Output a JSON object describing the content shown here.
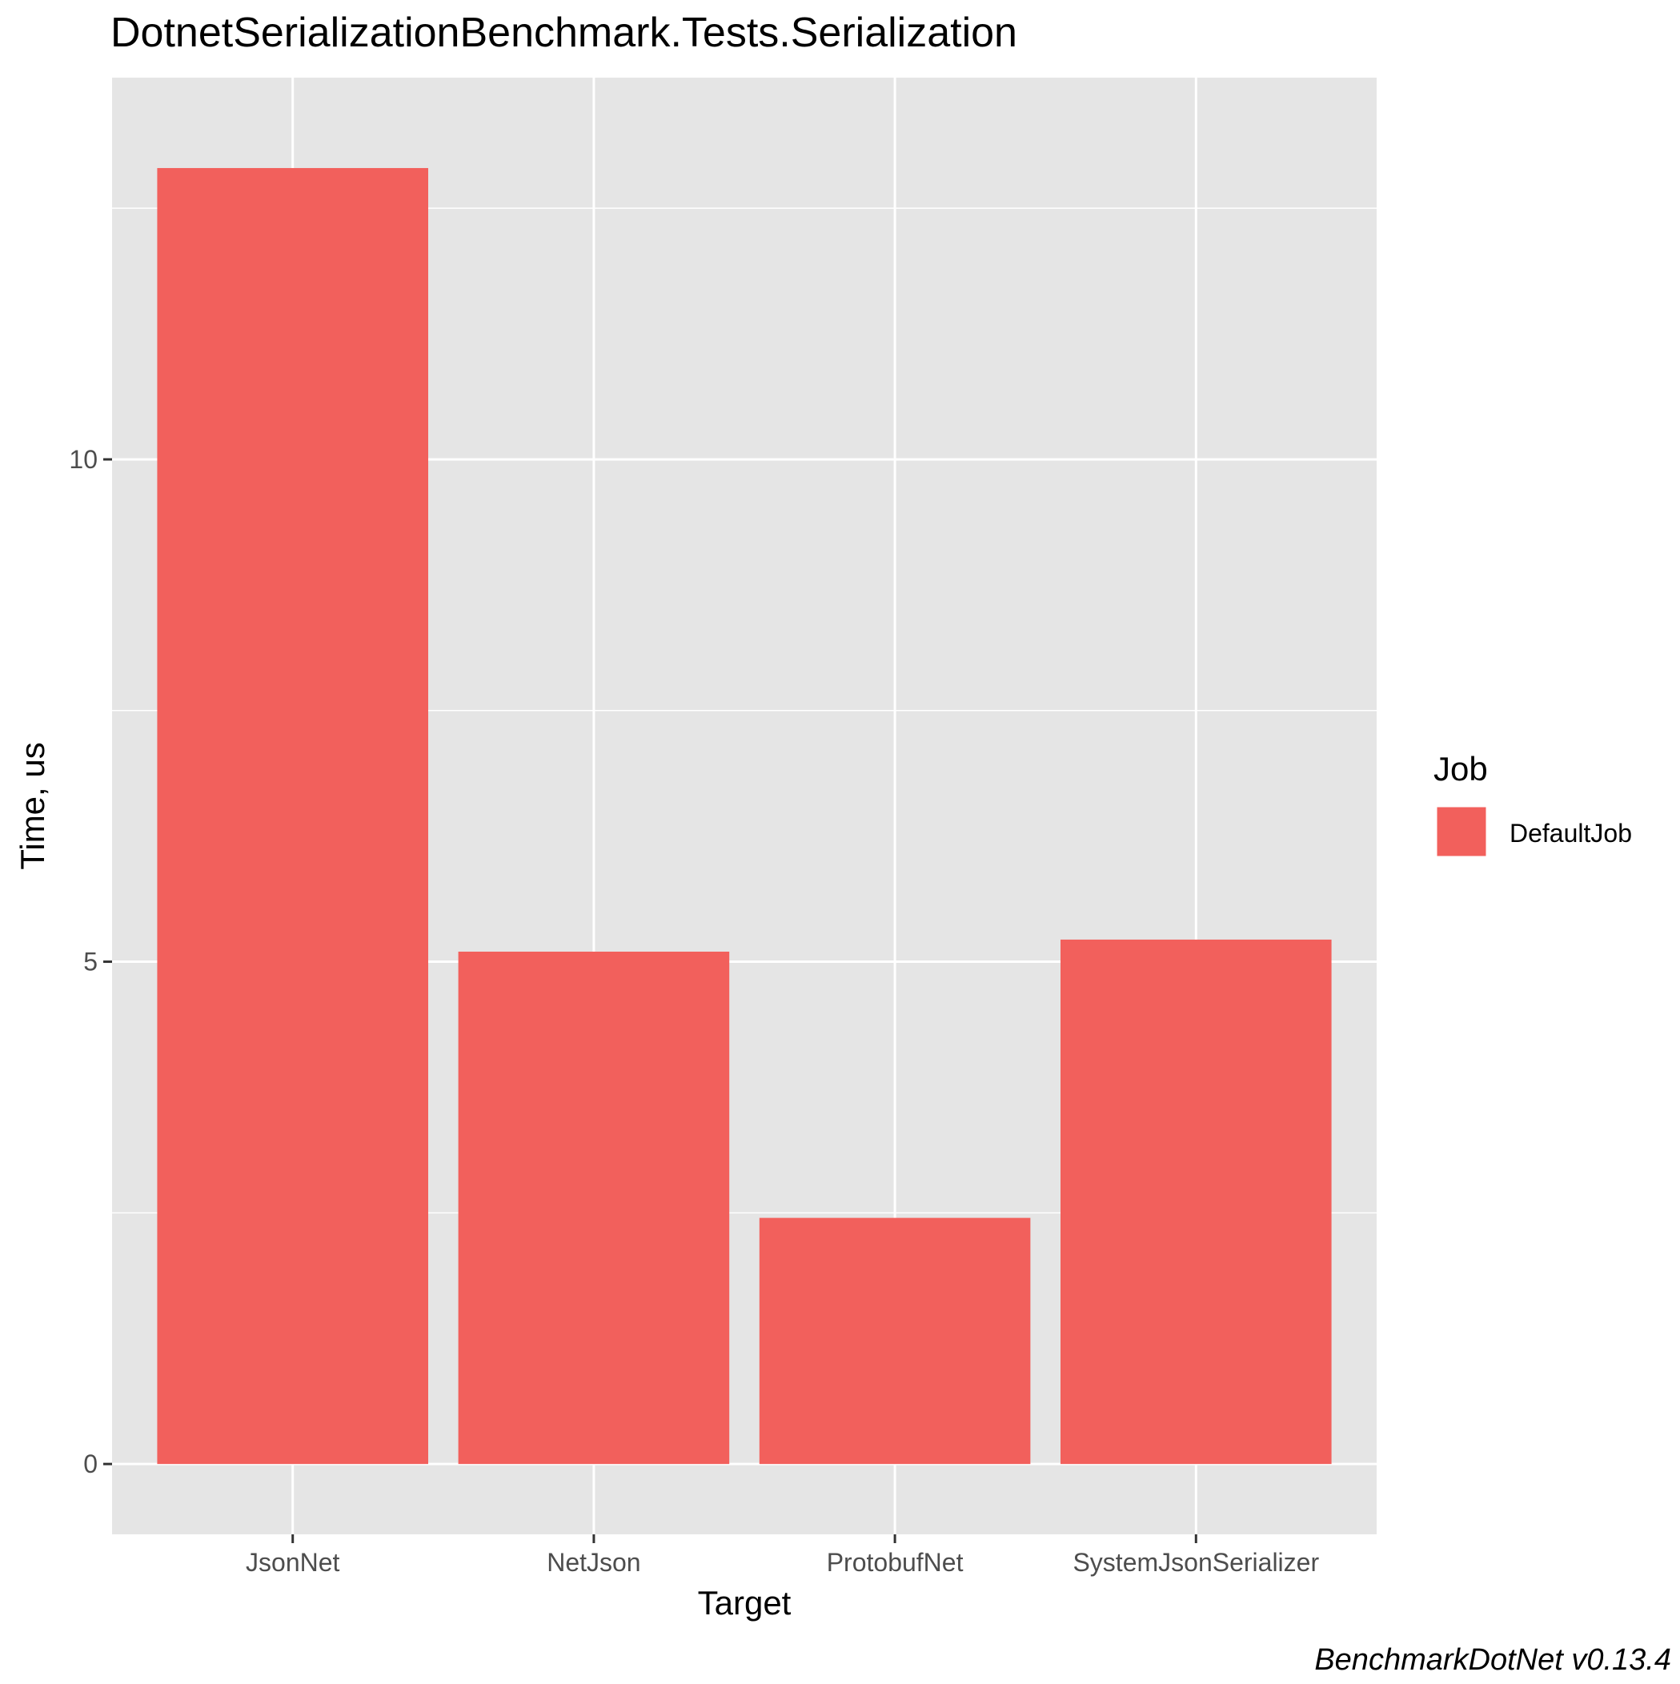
{
  "chart_data": {
    "type": "bar",
    "title": "DotnetSerializationBenchmark.Tests.Serialization",
    "xlabel": "Target",
    "ylabel": "Time, us",
    "categories": [
      "JsonNet",
      "NetJson",
      "ProtobufNet",
      "SystemJsonSerializer"
    ],
    "series": [
      {
        "name": "DefaultJob",
        "values": [
          12.9,
          5.1,
          2.45,
          5.22
        ],
        "color": "#F2605C"
      }
    ],
    "ylim": [
      -0.7,
      13.8
    ],
    "yticks": [
      0,
      5,
      10
    ],
    "ytick_labels": [
      "0",
      "5",
      "10"
    ],
    "grid": true,
    "legend": {
      "title": "Job",
      "placement": "right",
      "entries": [
        "DefaultJob"
      ]
    },
    "caption": "BenchmarkDotNet v0.13.4"
  },
  "colors": {
    "panel_background": "#E5E5E5",
    "grid_line": "#FFFFFF",
    "bar_fill": "#F2605C",
    "text": "#000000",
    "tick_text": "#4D4D4D",
    "axis_tick": "#333333"
  }
}
